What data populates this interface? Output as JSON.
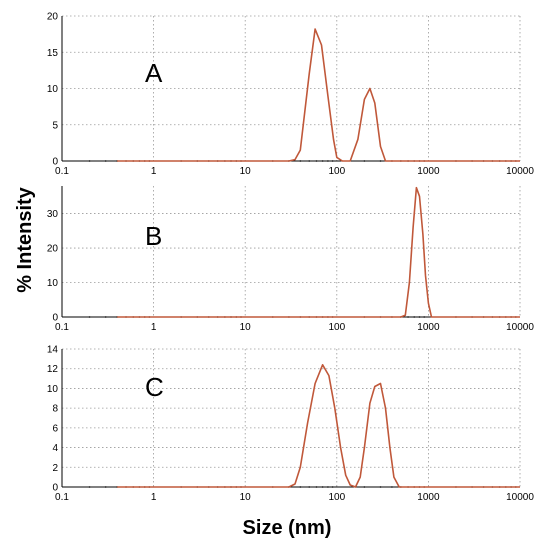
{
  "y_axis_title": "% Intensity",
  "x_axis_title": "Size (nm)",
  "series_color": "#c0583a",
  "chart_data": [
    {
      "type": "line",
      "panel_label": "A",
      "xscale": "log",
      "xlim": [
        0.1,
        10000
      ],
      "ylim": [
        0,
        20
      ],
      "x_ticks": [
        "0.1",
        "1",
        "10",
        "100",
        "1000",
        "10000"
      ],
      "y_ticks": [
        "0",
        "5",
        "10",
        "15",
        "20"
      ],
      "grid": true,
      "series": [
        {
          "x": [
            0.4,
            1,
            10,
            30,
            35,
            40,
            50,
            58,
            68,
            80,
            92,
            100,
            115,
            140,
            170,
            200,
            230,
            260,
            300,
            340,
            1000,
            10000
          ],
          "y": [
            0,
            0,
            0,
            0,
            0.2,
            1.5,
            12,
            18.2,
            16,
            9,
            3,
            0.5,
            0,
            0,
            3,
            8.5,
            10,
            8,
            2,
            0,
            0,
            0
          ]
        }
      ]
    },
    {
      "type": "line",
      "panel_label": "B",
      "xscale": "log",
      "xlim": [
        0.1,
        10000
      ],
      "ylim": [
        0,
        38
      ],
      "x_ticks": [
        "0.1",
        "1",
        "10",
        "100",
        "1000",
        "10000"
      ],
      "y_ticks": [
        "0",
        "10",
        "20",
        "30"
      ],
      "grid": true,
      "series": [
        {
          "x": [
            0.4,
            1,
            10,
            100,
            500,
            560,
            620,
            680,
            740,
            800,
            870,
            930,
            1000,
            1080,
            10000
          ],
          "y": [
            0,
            0,
            0,
            0,
            0,
            0.5,
            10,
            26,
            37.5,
            35,
            24,
            12,
            4,
            0,
            0
          ]
        }
      ]
    },
    {
      "type": "line",
      "panel_label": "C",
      "xscale": "log",
      "xlim": [
        0.1,
        10000
      ],
      "ylim": [
        0,
        14
      ],
      "x_ticks": [
        "0.1",
        "1",
        "10",
        "100",
        "1000",
        "10000"
      ],
      "y_ticks": [
        "0",
        "2",
        "4",
        "6",
        "8",
        "10",
        "12",
        "14"
      ],
      "grid": true,
      "series": [
        {
          "x": [
            0.4,
            1,
            10,
            30,
            35,
            40,
            48,
            58,
            70,
            82,
            95,
            110,
            125,
            140,
            160,
            180,
            200,
            230,
            260,
            300,
            340,
            380,
            420,
            480,
            1000,
            10000
          ],
          "y": [
            0,
            0,
            0,
            0,
            0.3,
            2,
            6.5,
            10.5,
            12.4,
            11.3,
            8,
            4,
            1.2,
            0.2,
            0,
            1,
            4,
            8.5,
            10.2,
            10.5,
            8,
            4,
            1,
            0,
            0,
            0
          ]
        }
      ]
    }
  ]
}
